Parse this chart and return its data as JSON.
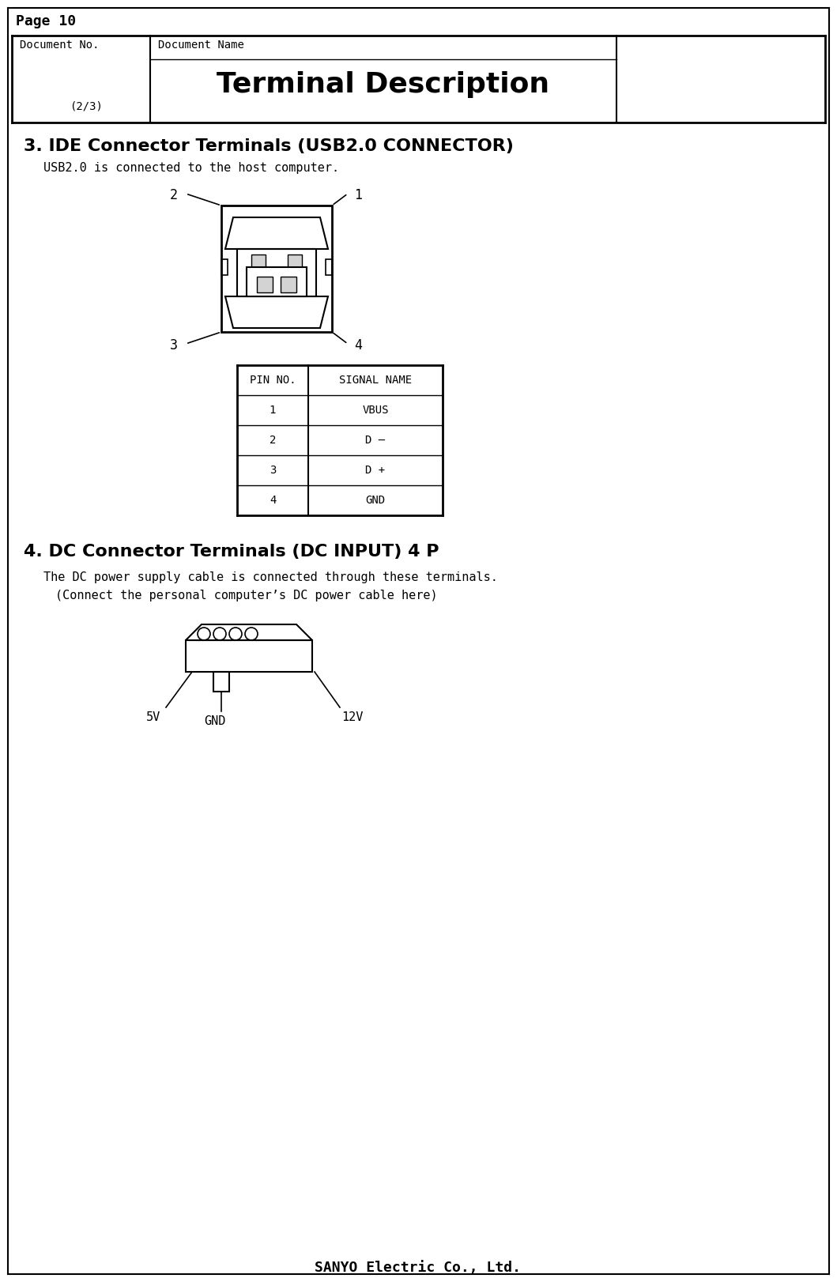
{
  "page_label": "Page 10",
  "doc_no_label": "Document No.",
  "doc_name_label": "Document Name",
  "title": "Terminal Description",
  "subtitle": "(2/3)",
  "section3_title": "3. IDE Connector Terminals (USB2.0 CONNECTOR)",
  "section3_desc": "USB2.0 is connected to the host computer.",
  "table_headers": [
    "PIN NO.",
    "SIGNAL NAME"
  ],
  "table_rows": [
    [
      "1",
      "VBUS"
    ],
    [
      "2",
      "D –"
    ],
    [
      "3",
      "D +"
    ],
    [
      "4",
      "GND"
    ]
  ],
  "section4_title": "4. DC Connector Terminals (DC INPUT) 4 P",
  "section4_desc1": "The DC power supply cable is connected through these terminals.",
  "section4_desc2": "(Connect the personal computer’s DC power cable here)",
  "dc_labels": [
    "5V",
    "GND",
    "12V"
  ],
  "footer": "SANYO Electric Co., Ltd.",
  "bg_color": "#ffffff",
  "border_color": "#000000",
  "text_color": "#000000"
}
